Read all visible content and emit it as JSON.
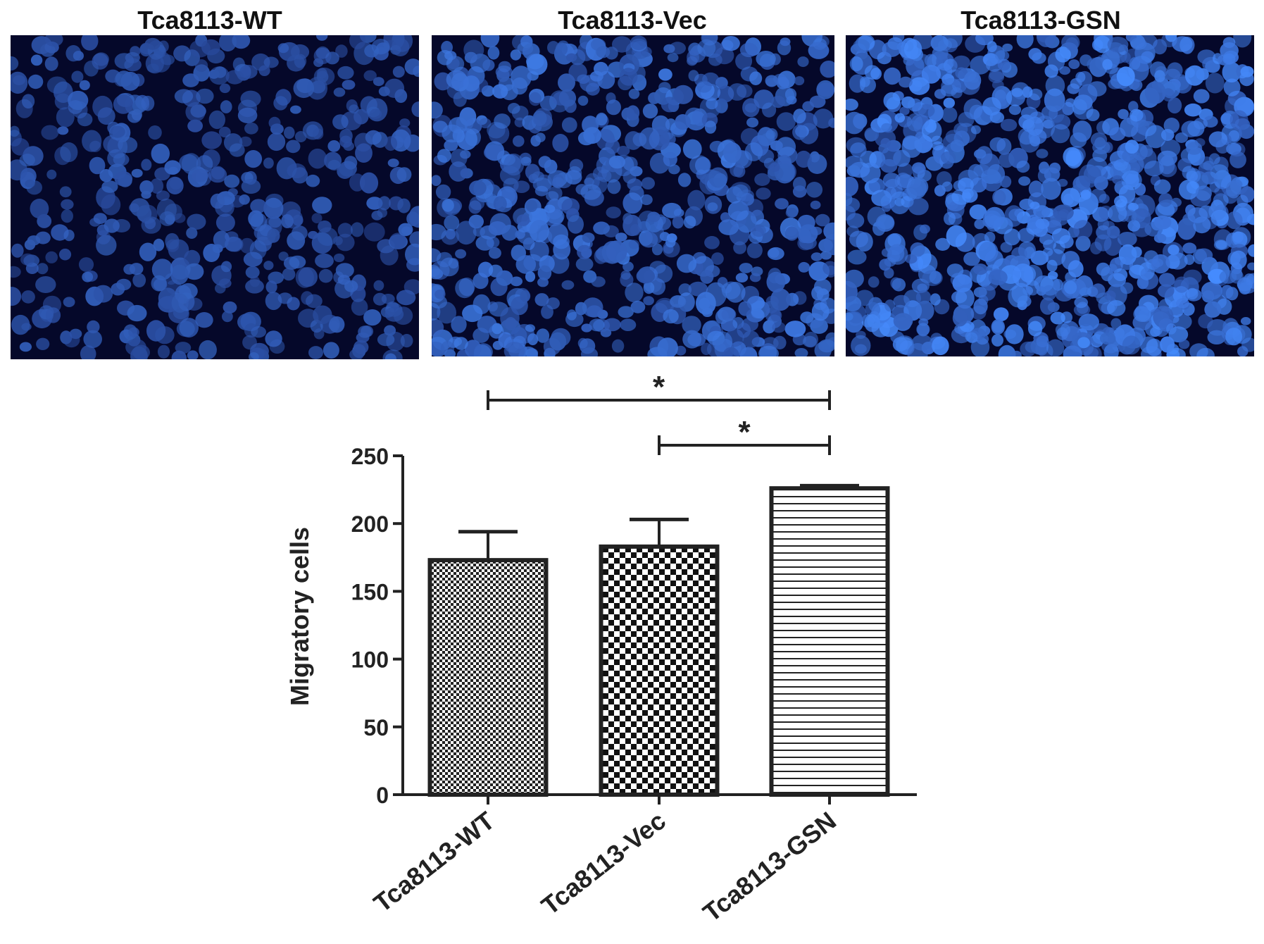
{
  "panels": [
    {
      "title": "Tca8113-WT",
      "density": 0.35,
      "brightness": 0.55
    },
    {
      "title": "Tca8113-Vec",
      "density": 0.65,
      "brightness": 0.8
    },
    {
      "title": "Tca8113-GSN",
      "density": 0.95,
      "brightness": 1.0
    }
  ],
  "chart_data": {
    "type": "bar",
    "title": "",
    "xlabel": "",
    "ylabel": "Migratory cells",
    "categories": [
      "Tca8113-WT",
      "Tca8113-Vec",
      "Tca8113-GSN"
    ],
    "values": [
      173,
      183,
      226
    ],
    "errors": [
      21,
      20,
      2
    ],
    "ylim": [
      0,
      250
    ],
    "yticks": [
      0,
      50,
      100,
      150,
      200,
      250
    ],
    "grid": false,
    "patterns": [
      "fine-checker",
      "checker",
      "horizontal-lines"
    ],
    "significance": [
      {
        "from": "Tca8113-WT",
        "to": "Tca8113-GSN",
        "label": "*"
      },
      {
        "from": "Tca8113-Vec",
        "to": "Tca8113-GSN",
        "label": "*"
      }
    ]
  }
}
